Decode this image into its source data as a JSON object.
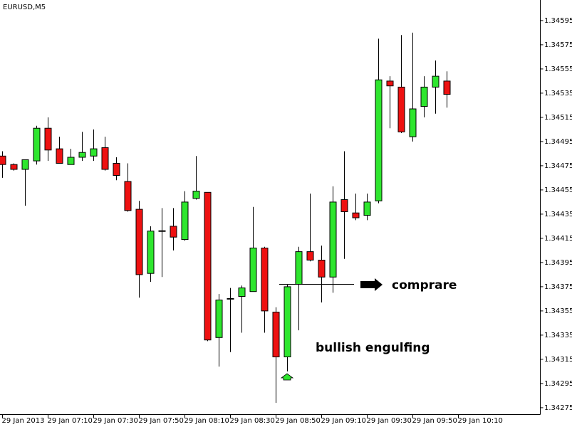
{
  "chart_data": {
    "type": "candlestick",
    "title": "EURUSD,M5",
    "categories": [
      "29 Jan 2013",
      null,
      null,
      null,
      "29 Jan 07:10",
      null,
      null,
      null,
      "29 Jan 07:30",
      null,
      null,
      null,
      "29 Jan 07:50",
      null,
      null,
      null,
      "29 Jan 08:10",
      null,
      null,
      null,
      "29 Jan 08:30",
      null,
      null,
      null,
      "29 Jan 08:50",
      null,
      null,
      null,
      "29 Jan 09:10",
      null,
      null,
      null,
      "29 Jan 09:30",
      null,
      null,
      null,
      "29 Jan 09:50",
      null,
      null,
      null,
      "29 Jan 10:10"
    ],
    "open": [
      1.34483,
      1.34476,
      1.34472,
      1.34479,
      1.34506,
      1.34489,
      1.34476,
      1.34482,
      1.34483,
      1.3449,
      1.34477,
      1.34462,
      1.34439,
      1.34386,
      1.34421,
      1.34425,
      1.34414,
      1.34448,
      1.34453,
      1.34333,
      1.34365,
      1.34367,
      1.34371,
      1.34407,
      1.34354,
      1.34317,
      1.34377,
      1.34404,
      1.34397,
      1.34383,
      1.34447,
      1.34436,
      1.34434,
      1.34446,
      1.34545,
      1.3454,
      1.34499,
      1.34524,
      1.3454,
      1.34545,
      null
    ],
    "high": [
      1.34487,
      1.34477,
      1.3448,
      1.34508,
      1.34515,
      1.34499,
      1.34489,
      1.34503,
      1.34505,
      1.34499,
      1.34482,
      1.34477,
      1.34446,
      1.34425,
      1.3444,
      1.3444,
      1.34454,
      1.34483,
      1.34453,
      1.34369,
      1.34374,
      1.34376,
      1.34441,
      1.34408,
      1.34358,
      1.34377,
      1.34408,
      1.34452,
      1.34409,
      1.34458,
      1.34487,
      1.34452,
      1.34452,
      1.3458,
      1.34549,
      1.34583,
      1.34585,
      1.34549,
      1.34562,
      1.34553,
      null
    ],
    "low": [
      1.34465,
      1.34471,
      1.34442,
      1.34476,
      1.34479,
      1.34477,
      1.34476,
      1.34479,
      1.34479,
      1.34471,
      1.34463,
      1.34437,
      1.34366,
      1.34379,
      1.34383,
      1.34405,
      1.34413,
      1.34447,
      1.3433,
      1.34309,
      1.34321,
      1.34337,
      1.34371,
      1.34337,
      1.34279,
      1.34305,
      1.34339,
      1.34396,
      1.34362,
      1.3437,
      1.34398,
      1.3443,
      1.3443,
      1.34444,
      1.34506,
      1.34502,
      1.34495,
      1.34515,
      1.34518,
      1.34523,
      null
    ],
    "close": [
      1.34476,
      1.34472,
      1.3448,
      1.34506,
      1.34488,
      1.34477,
      1.34482,
      1.34486,
      1.34489,
      1.34472,
      1.34467,
      1.34438,
      1.34385,
      1.34421,
      1.34421,
      1.34416,
      1.34445,
      1.34454,
      1.34331,
      1.34364,
      1.34365,
      1.34374,
      1.34407,
      1.34355,
      1.34317,
      1.34375,
      1.34404,
      1.34397,
      1.34383,
      1.34445,
      1.34437,
      1.34432,
      1.34445,
      1.34546,
      1.34541,
      1.34503,
      1.34522,
      1.3454,
      1.34549,
      1.34534,
      null
    ],
    "up_color": "#2ee62e",
    "down_color": "#ee1111",
    "ylim": [
      1.3427,
      1.34612
    ],
    "yticks": [
      1.34595,
      1.34575,
      1.34555,
      1.34535,
      1.34515,
      1.34495,
      1.34475,
      1.34455,
      1.34435,
      1.34415,
      1.34395,
      1.34375,
      1.34355,
      1.34335,
      1.34315,
      1.34295,
      1.34275
    ],
    "annotations": [
      "comprare",
      "bullish engulfing"
    ]
  }
}
